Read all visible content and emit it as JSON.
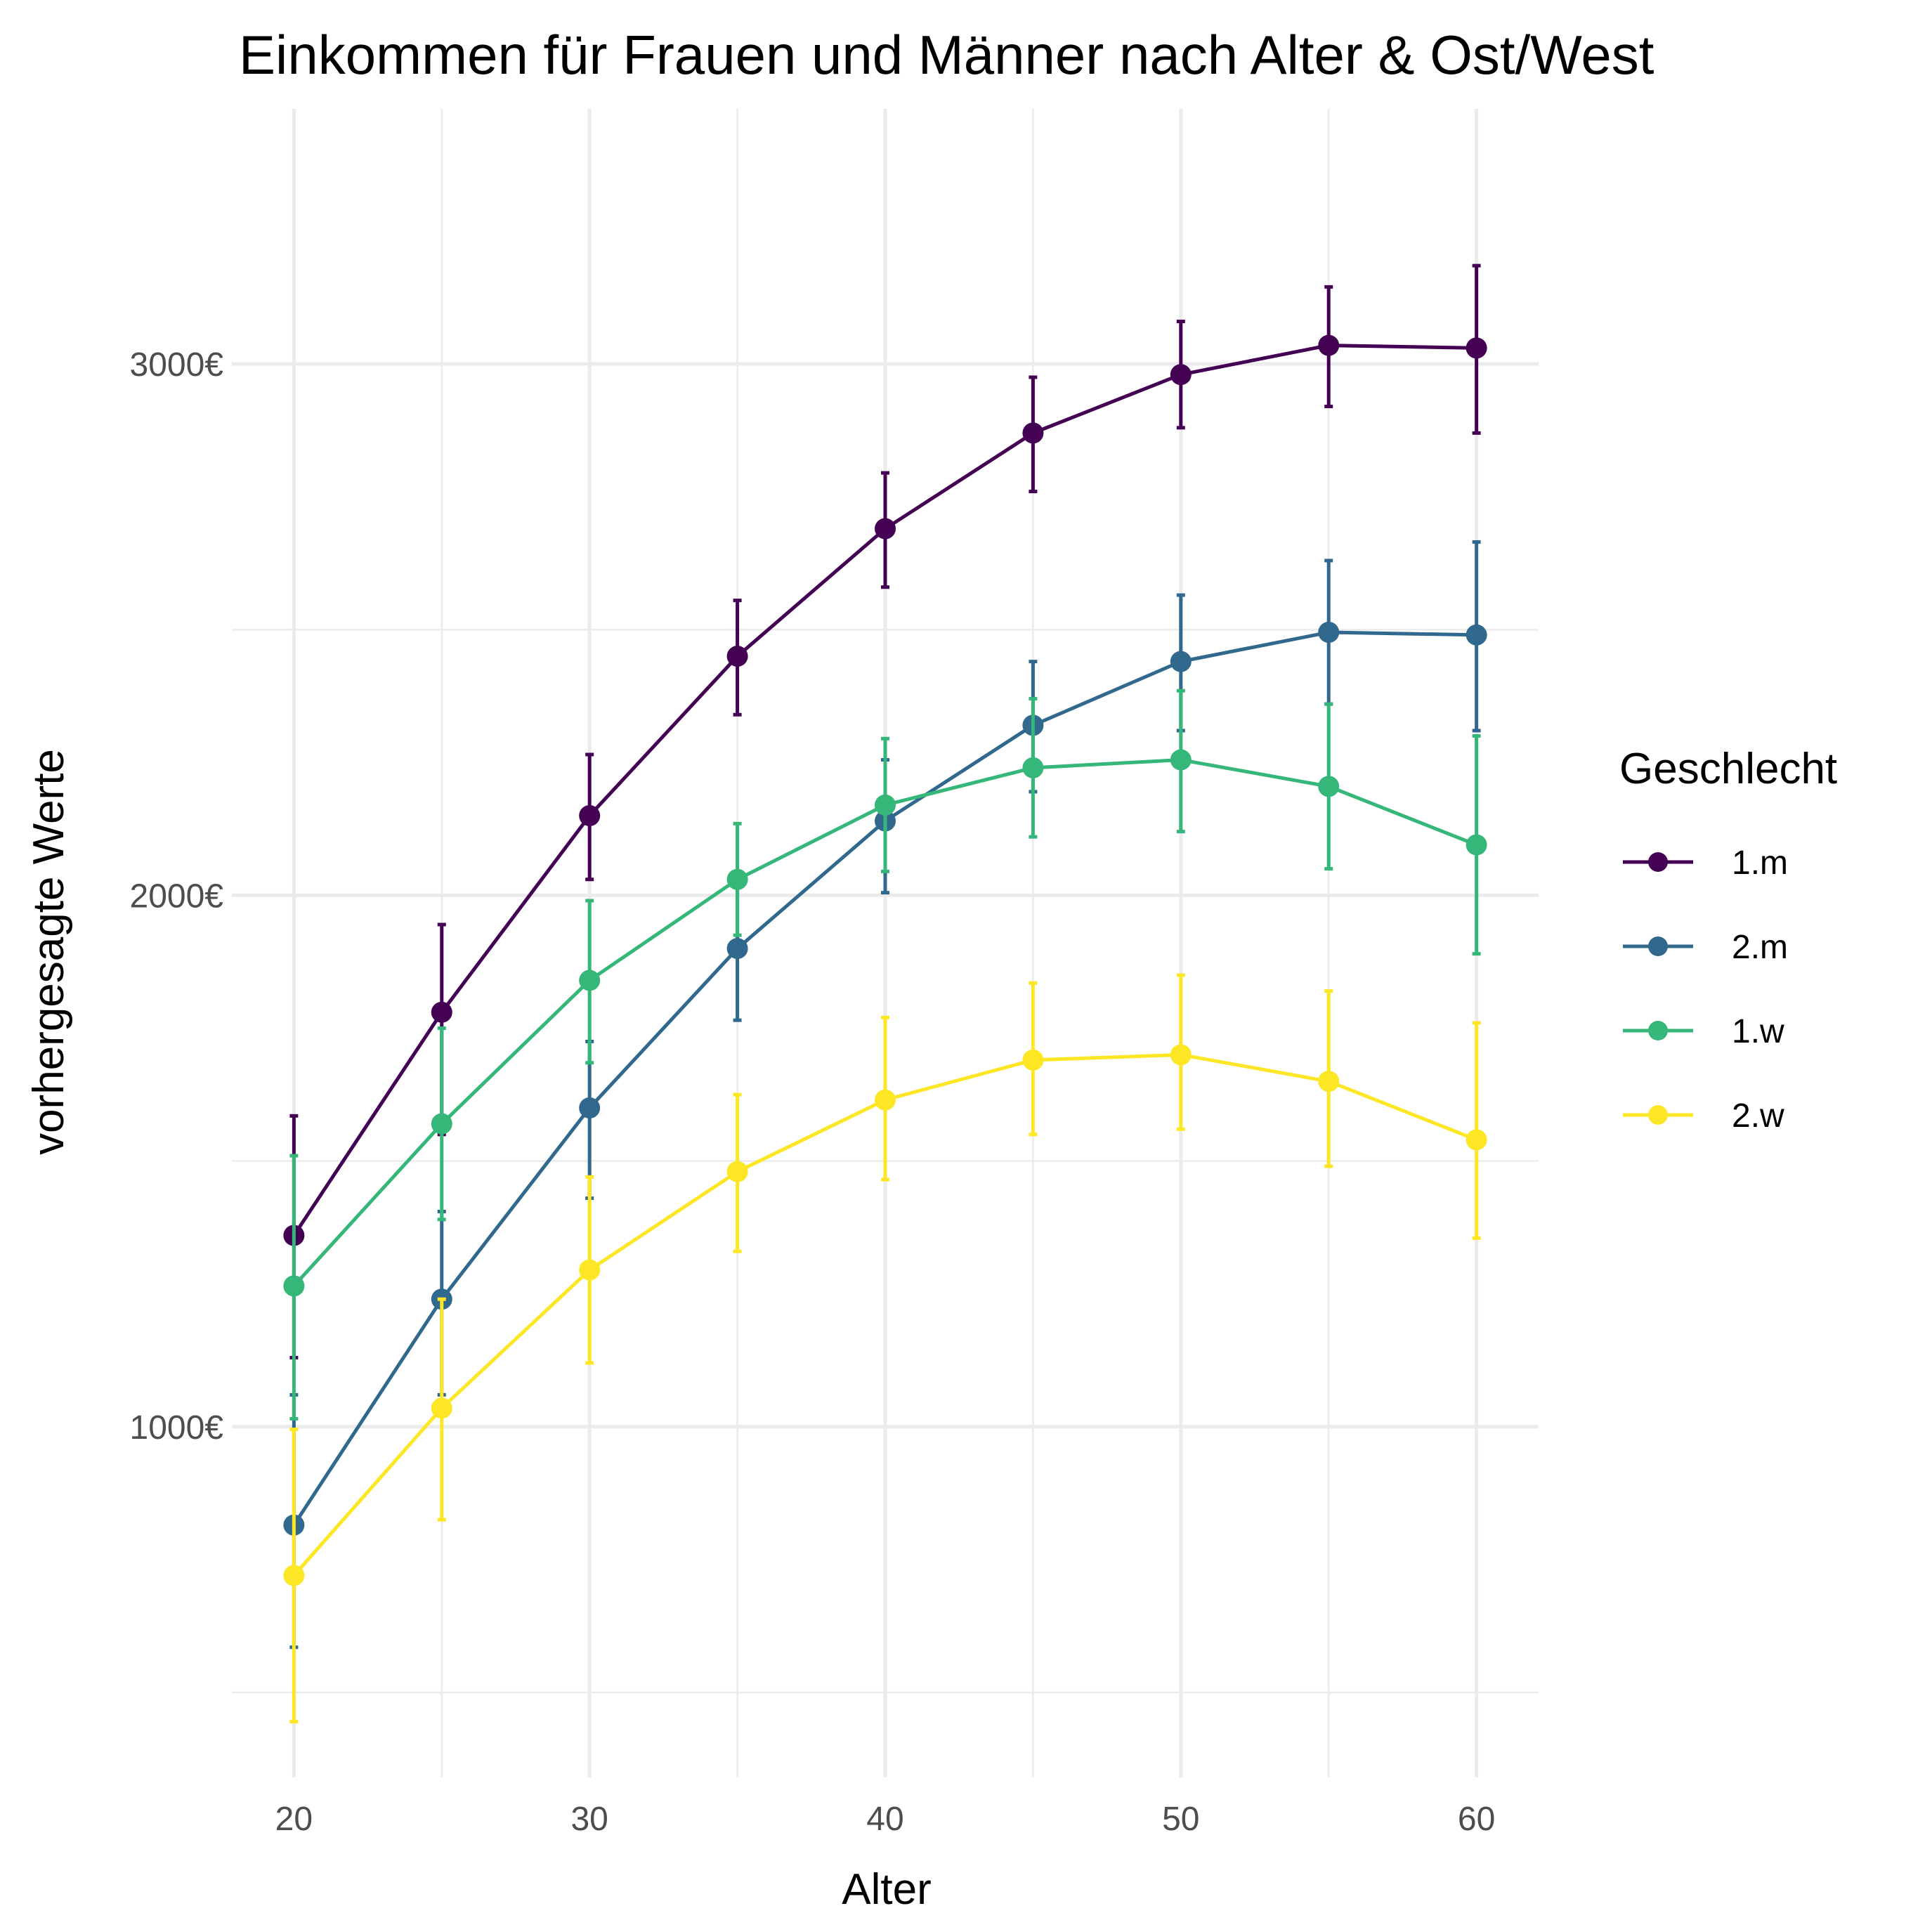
{
  "chart_data": {
    "type": "line",
    "title": "Einkommen für Frauen und Männer nach Alter & Ost/West",
    "xlabel": "Alter",
    "ylabel": "vorhergesagte Werte",
    "x": [
      20,
      25,
      30,
      35,
      40,
      45,
      50,
      55,
      60
    ],
    "xlim": [
      17.9,
      62.1
    ],
    "ylim": [
      340,
      3480
    ],
    "x_ticks": [
      20,
      30,
      40,
      50,
      60
    ],
    "x_tick_labels": [
      "20",
      "30",
      "40",
      "50",
      "60"
    ],
    "y_ticks": [
      1000,
      2000,
      3000
    ],
    "y_tick_labels": [
      "1000€",
      "2000€",
      "3000€"
    ],
    "y_minor_ticks": [
      500,
      1500,
      2500
    ],
    "grid": true,
    "legend_title": "Geschlecht",
    "legend_position": "right",
    "series": [
      {
        "name": "1.m",
        "color": "#440154",
        "values": [
          1360,
          1780,
          2150,
          2450,
          2690,
          2870,
          2980,
          3035,
          3030
        ],
        "lower": [
          1130,
          1550,
          2030,
          2340,
          2580,
          2760,
          2880,
          2920,
          2870
        ],
        "upper": [
          1585,
          1945,
          2265,
          2555,
          2795,
          2975,
          3080,
          3145,
          3185
        ]
      },
      {
        "name": "2.m",
        "color": "#31688E",
        "values": [
          815,
          1240,
          1600,
          1900,
          2140,
          2320,
          2440,
          2495,
          2490
        ],
        "lower": [
          585,
          1060,
          1430,
          1765,
          2005,
          2195,
          2310,
          2360,
          2310
        ],
        "upper": [
          1060,
          1405,
          1725,
          2015,
          2255,
          2440,
          2565,
          2630,
          2665
        ]
      },
      {
        "name": "1.w",
        "color": "#35B779",
        "values": [
          1265,
          1570,
          1840,
          2030,
          2170,
          2240,
          2255,
          2205,
          2095
        ],
        "lower": [
          1015,
          1390,
          1685,
          1925,
          2045,
          2110,
          2120,
          2050,
          1890
        ],
        "upper": [
          1510,
          1750,
          1990,
          2135,
          2295,
          2370,
          2385,
          2360,
          2300
        ]
      },
      {
        "name": "2.w",
        "color": "#FDE725",
        "values": [
          720,
          1035,
          1295,
          1480,
          1615,
          1690,
          1700,
          1650,
          1540
        ],
        "lower": [
          445,
          825,
          1120,
          1330,
          1465,
          1550,
          1560,
          1490,
          1355
        ],
        "upper": [
          995,
          1240,
          1470,
          1625,
          1770,
          1835,
          1850,
          1820,
          1760
        ]
      }
    ]
  }
}
